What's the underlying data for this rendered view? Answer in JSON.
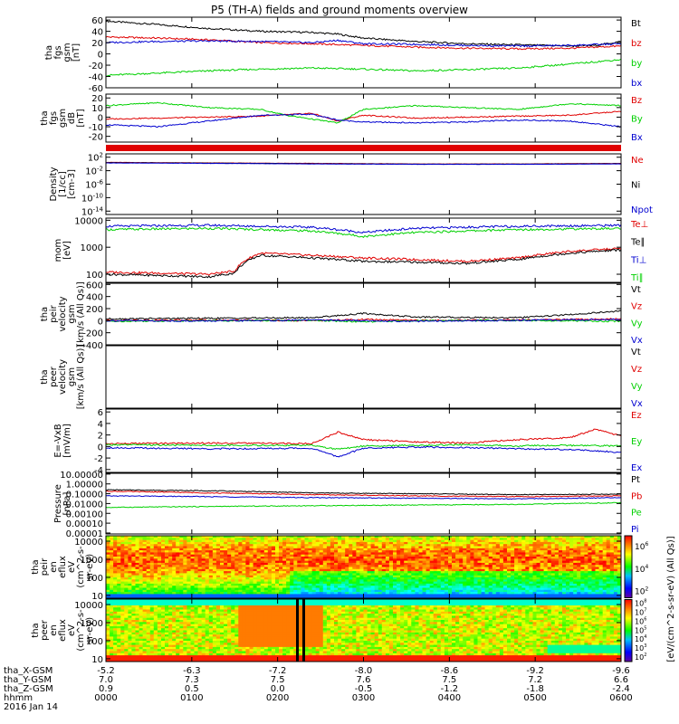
{
  "title": "P5 (TH-A) fields and ground moments overview",
  "colors": {
    "black": "#000000",
    "red": "#e00000",
    "green": "#00d000",
    "blue": "#0000d0"
  },
  "chart_data": [
    {
      "type": "line",
      "ylabel": [
        "tha",
        "fgs",
        "gsm",
        "[nT]"
      ],
      "yticks": [
        60,
        40,
        20,
        0,
        -20,
        -40,
        -60
      ],
      "ylim": [
        -60,
        65
      ],
      "series": [
        {
          "name": "Bt",
          "color": "black",
          "x": [
            0,
            0.1,
            0.2,
            0.3,
            0.4,
            0.45,
            0.5,
            0.6,
            0.7,
            0.8,
            0.9,
            0.95,
            1
          ],
          "y": [
            58,
            52,
            45,
            40,
            38,
            35,
            28,
            22,
            18,
            16,
            14,
            15,
            22
          ]
        },
        {
          "name": "bz",
          "color": "red",
          "x": [
            0,
            0.1,
            0.2,
            0.3,
            0.4,
            0.5,
            0.6,
            0.7,
            0.8,
            0.9,
            1
          ],
          "y": [
            30,
            28,
            25,
            20,
            18,
            15,
            12,
            10,
            9,
            10,
            14
          ]
        },
        {
          "name": "by",
          "color": "green",
          "x": [
            0,
            0.1,
            0.2,
            0.3,
            0.4,
            0.5,
            0.6,
            0.7,
            0.8,
            0.9,
            1
          ],
          "y": [
            -38,
            -34,
            -30,
            -27,
            -25,
            -27,
            -30,
            -28,
            -25,
            -18,
            -10
          ]
        },
        {
          "name": "bx",
          "color": "blue",
          "x": [
            0,
            0.1,
            0.2,
            0.3,
            0.4,
            0.45,
            0.5,
            0.6,
            0.7,
            0.8,
            0.9,
            1
          ],
          "y": [
            20,
            22,
            23,
            22,
            20,
            24,
            18,
            17,
            15,
            14,
            15,
            18
          ]
        }
      ]
    },
    {
      "type": "line",
      "ylabel": [
        "tha",
        "fgs",
        "gsm",
        "dB",
        "[nT]"
      ],
      "yticks": [
        20,
        10,
        0,
        -10,
        -20
      ],
      "ylim": [
        -26,
        24
      ],
      "series": [
        {
          "name": "Bz",
          "color": "red",
          "x": [
            0,
            0.1,
            0.2,
            0.3,
            0.4,
            0.45,
            0.5,
            0.6,
            0.7,
            0.8,
            0.9,
            1
          ],
          "y": [
            -2,
            -1,
            0,
            1,
            4,
            -4,
            2,
            -1,
            0,
            1,
            2,
            6
          ]
        },
        {
          "name": "By",
          "color": "green",
          "x": [
            0,
            0.1,
            0.2,
            0.3,
            0.35,
            0.45,
            0.5,
            0.6,
            0.7,
            0.8,
            0.9,
            1
          ],
          "y": [
            12,
            15,
            10,
            8,
            2,
            -6,
            8,
            12,
            10,
            8,
            14,
            12
          ]
        },
        {
          "name": "Bx",
          "color": "blue",
          "x": [
            0,
            0.1,
            0.2,
            0.3,
            0.4,
            0.45,
            0.5,
            0.6,
            0.7,
            0.8,
            0.9,
            1
          ],
          "y": [
            -8,
            -10,
            -4,
            2,
            3,
            -3,
            -5,
            -6,
            -5,
            -3,
            -4,
            -10
          ]
        }
      ]
    },
    {
      "type": "line",
      "ylabel": [
        "Density",
        "[1/cc]",
        "[cm-3]"
      ],
      "yticks": [
        100,
        0.01,
        1e-06,
        1e-10,
        1e-14
      ],
      "ytick_labels": [
        "10^2",
        "10^-2",
        "10^-6",
        "10^-10",
        "10^-14"
      ],
      "scale": "log",
      "ylim": [
        1e-15,
        1000
      ],
      "series": [
        {
          "name": "Ne",
          "color": "red",
          "x": [
            0,
            0.2,
            0.4,
            0.6,
            0.8,
            1
          ],
          "y": [
            3,
            2,
            1.5,
            1,
            1,
            1.5
          ]
        },
        {
          "name": "Ni",
          "color": "black",
          "x": [
            0,
            0.2,
            0.4,
            0.6,
            0.8,
            1
          ],
          "y": [
            2.5,
            1.8,
            1.2,
            0.9,
            0.9,
            1.2
          ]
        },
        {
          "name": "Npot",
          "color": "blue",
          "x": [
            0,
            0.2,
            0.4,
            0.6,
            0.8,
            1
          ],
          "y": [
            2,
            1.5,
            1,
            0.8,
            0.8,
            1
          ]
        }
      ]
    },
    {
      "type": "line",
      "ylabel": [
        "mom",
        "[eV]"
      ],
      "yticks": [
        10000,
        1000,
        100
      ],
      "ytick_labels": [
        "10000",
        "1000",
        "100"
      ],
      "scale": "log",
      "ylim": [
        50,
        12000
      ],
      "series": [
        {
          "name": "Te⊥",
          "color": "red",
          "x": [
            0,
            0.1,
            0.2,
            0.25,
            0.3,
            0.4,
            0.5,
            0.6,
            0.7,
            0.8,
            0.9,
            1
          ],
          "y": [
            120,
            110,
            100,
            130,
            600,
            500,
            400,
            350,
            300,
            400,
            700,
            900
          ]
        },
        {
          "name": "Te∥",
          "color": "black",
          "x": [
            0,
            0.1,
            0.2,
            0.25,
            0.3,
            0.4,
            0.5,
            0.6,
            0.7,
            0.8,
            0.9,
            1
          ],
          "y": [
            100,
            90,
            80,
            110,
            500,
            400,
            300,
            280,
            250,
            350,
            600,
            800
          ]
        },
        {
          "name": "Ti⊥",
          "color": "blue",
          "x": [
            0,
            0.2,
            0.4,
            0.5,
            0.6,
            0.8,
            1
          ],
          "y": [
            6000,
            6500,
            5500,
            3500,
            5000,
            6000,
            6500
          ]
        },
        {
          "name": "Ti∥",
          "color": "green",
          "x": [
            0,
            0.2,
            0.4,
            0.5,
            0.6,
            0.8,
            1
          ],
          "y": [
            4500,
            5000,
            4000,
            2500,
            3500,
            4500,
            5000
          ]
        }
      ]
    },
    {
      "type": "line",
      "ylabel": [
        "tha",
        "peir",
        "velocity",
        "gsm",
        "[km/s (All Qs)]"
      ],
      "yticks": [
        600,
        400,
        200,
        0,
        -200,
        -400
      ],
      "ylim": [
        -400,
        620
      ],
      "series": [
        {
          "name": "Vt",
          "color": "black",
          "x": [
            0,
            0.2,
            0.4,
            0.5,
            0.6,
            0.8,
            0.9,
            1
          ],
          "y": [
            30,
            40,
            50,
            120,
            60,
            50,
            100,
            160
          ]
        },
        {
          "name": "Vz",
          "color": "red",
          "x": [
            0,
            0.2,
            0.4,
            0.5,
            0.6,
            0.8,
            1
          ],
          "y": [
            5,
            10,
            0,
            20,
            5,
            10,
            30
          ]
        },
        {
          "name": "Vy",
          "color": "green",
          "x": [
            0,
            0.2,
            0.4,
            0.5,
            0.6,
            0.8,
            1
          ],
          "y": [
            -10,
            0,
            5,
            -20,
            0,
            5,
            -10
          ]
        },
        {
          "name": "Vx",
          "color": "blue",
          "x": [
            0,
            0.2,
            0.4,
            0.5,
            0.6,
            0.8,
            1
          ],
          "y": [
            0,
            -5,
            10,
            0,
            -10,
            5,
            20
          ]
        }
      ]
    },
    {
      "type": "line",
      "ylabel": [
        "tha",
        "peer",
        "velocity",
        "gsm",
        "[km/s (All Qs)]"
      ],
      "yticks": [],
      "ylim": [
        0,
        1
      ],
      "series": [
        {
          "name": "Vt",
          "color": "black",
          "x": [],
          "y": []
        },
        {
          "name": "Vz",
          "color": "red",
          "x": [],
          "y": []
        },
        {
          "name": "Vy",
          "color": "green",
          "x": [],
          "y": []
        },
        {
          "name": "Vx",
          "color": "blue",
          "x": [],
          "y": []
        }
      ]
    },
    {
      "type": "line",
      "ylabel": [
        "E=-VxB",
        "[mV/m]"
      ],
      "yticks": [
        6,
        4,
        2,
        0,
        -2,
        -4
      ],
      "ylim": [
        -4.5,
        6.5
      ],
      "series": [
        {
          "name": "Ez",
          "color": "red",
          "x": [
            0,
            0.2,
            0.4,
            0.45,
            0.5,
            0.6,
            0.7,
            0.8,
            0.9,
            0.95,
            1
          ],
          "y": [
            0.5,
            0.6,
            0.5,
            2.5,
            1.2,
            0.8,
            0.6,
            1.2,
            1.5,
            3,
            1.8
          ]
        },
        {
          "name": "Ey",
          "color": "green",
          "x": [
            0,
            0.2,
            0.4,
            0.45,
            0.5,
            0.6,
            0.7,
            0.8,
            0.9,
            1
          ],
          "y": [
            0.3,
            0.2,
            0.2,
            -0.5,
            0.1,
            0.2,
            0.3,
            0.1,
            0.2,
            0.1
          ]
        },
        {
          "name": "Ex",
          "color": "blue",
          "x": [
            0,
            0.2,
            0.4,
            0.45,
            0.5,
            0.6,
            0.7,
            0.8,
            0.9,
            1
          ],
          "y": [
            -0.2,
            -0.4,
            -0.3,
            -1.8,
            -0.3,
            -0.1,
            -0.2,
            -0.4,
            -0.5,
            -1
          ]
        }
      ]
    },
    {
      "type": "line",
      "ylabel": [
        "Pressure",
        "[nPa]"
      ],
      "yticks": [
        10,
        1,
        0.1,
        0.01,
        0.001,
        0.0001,
        1e-05
      ],
      "ytick_labels": [
        "10.00000",
        "1.00000",
        "0.10000",
        "0.01000",
        "0.00100",
        "0.00010",
        "0.00001"
      ],
      "scale": "log",
      "ylim": [
        8e-06,
        12
      ],
      "series": [
        {
          "name": "Pt",
          "color": "black",
          "x": [
            0,
            0.2,
            0.4,
            0.6,
            0.8,
            1
          ],
          "y": [
            0.25,
            0.2,
            0.12,
            0.1,
            0.08,
            0.09
          ]
        },
        {
          "name": "Pb",
          "color": "red",
          "x": [
            0,
            0.2,
            0.4,
            0.6,
            0.8,
            1
          ],
          "y": [
            0.18,
            0.12,
            0.08,
            0.06,
            0.05,
            0.06
          ]
        },
        {
          "name": "Pe",
          "color": "green",
          "x": [
            0,
            0.2,
            0.4,
            0.6,
            0.8,
            1
          ],
          "y": [
            0.004,
            0.005,
            0.006,
            0.007,
            0.008,
            0.012
          ]
        },
        {
          "name": "Pi",
          "color": "blue",
          "x": [
            0,
            0.2,
            0.4,
            0.6,
            0.8,
            1
          ],
          "y": [
            0.06,
            0.05,
            0.04,
            0.035,
            0.03,
            0.04
          ]
        }
      ]
    },
    {
      "type": "heatmap",
      "ylabel": [
        "tha",
        "peir",
        "en",
        "eflux",
        "eV",
        "(cm^2-s-",
        "sr-eV)"
      ],
      "yticks": [
        10000,
        1000,
        100,
        10
      ],
      "ytick_labels": [
        "10000",
        "1000",
        "100",
        "10"
      ],
      "scale": "log",
      "ylim": [
        7,
        20000
      ]
    },
    {
      "type": "heatmap",
      "ylabel": [
        "tha",
        "peer",
        "en",
        "eflux",
        "eV",
        "(cm^2-s-",
        "sr-eV)"
      ],
      "yticks": [
        10000,
        1000,
        100,
        10
      ],
      "ytick_labels": [
        "10000",
        "1000",
        "100",
        "10"
      ],
      "scale": "log",
      "ylim": [
        7,
        20000
      ]
    }
  ],
  "colorbar": {
    "label": "[eV/(cm^2-s-sr-eV) (All Qs)]",
    "upper_ticks": [
      "10^6",
      "10^4",
      "10^2"
    ],
    "lower_ticks": [
      "10^8",
      "10^7",
      "10^6",
      "10^5",
      "10^4",
      "10^3",
      "10^2"
    ]
  },
  "x_axis": {
    "ticks": [
      {
        "pos": 0,
        "gsmx": "-5.2",
        "gsmy": "7.0",
        "gsmz": "0.9",
        "time": "0000"
      },
      {
        "pos": 0.1667,
        "gsmx": "-6.3",
        "gsmy": "7.3",
        "gsmz": "0.5",
        "time": "0100"
      },
      {
        "pos": 0.3333,
        "gsmx": "-7.2",
        "gsmy": "7.5",
        "gsmz": "0.0",
        "time": "0200"
      },
      {
        "pos": 0.5,
        "gsmx": "-8.0",
        "gsmy": "7.6",
        "gsmz": "-0.5",
        "time": "0300"
      },
      {
        "pos": 0.6667,
        "gsmx": "-8.6",
        "gsmy": "7.5",
        "gsmz": "-1.2",
        "time": "0400"
      },
      {
        "pos": 0.8333,
        "gsmx": "-9.2",
        "gsmy": "7.2",
        "gsmz": "-1.8",
        "time": "0500"
      },
      {
        "pos": 1,
        "gsmx": "-9.6",
        "gsmy": "6.6",
        "gsmz": "-2.4",
        "time": "0600"
      }
    ],
    "row_labels": [
      "tha_X-GSM",
      "tha_Y-GSM",
      "tha_Z-GSM",
      "hhmm"
    ],
    "date": "2016 Jan 14"
  }
}
